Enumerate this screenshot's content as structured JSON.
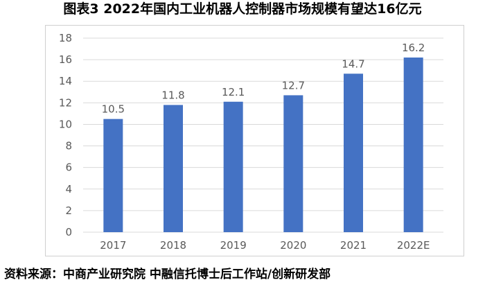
{
  "title": "图表3  2022年国内工业机器人控制器市场规模有望达16亿元",
  "source": "资料来源：中商产业研究院  中融信托博士后工作站/创新研发部",
  "colors": {
    "bar": "#4472C4",
    "grid": "#d9d9d9",
    "axis_text": "#595959"
  },
  "chart_data": {
    "type": "bar",
    "title": "",
    "xlabel": "",
    "ylabel": "",
    "categories": [
      "2017",
      "2018",
      "2019",
      "2020",
      "2021",
      "2022E"
    ],
    "values": [
      10.5,
      11.8,
      12.1,
      12.7,
      14.7,
      16.2
    ],
    "data_labels": [
      "10.5",
      "11.8",
      "12.1",
      "12.7",
      "14.7",
      "16.2"
    ],
    "ylim": [
      0,
      18
    ],
    "yticks": [
      0,
      2,
      4,
      6,
      8,
      10,
      12,
      14,
      16,
      18
    ],
    "grid": true,
    "legend": "none"
  }
}
